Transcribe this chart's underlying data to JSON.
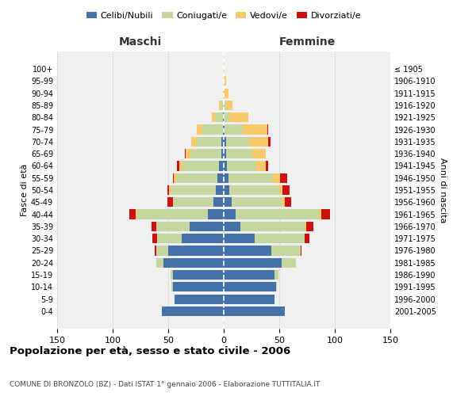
{
  "age_groups": [
    "0-4",
    "5-9",
    "10-14",
    "15-19",
    "20-24",
    "25-29",
    "30-34",
    "35-39",
    "40-44",
    "45-49",
    "50-54",
    "55-59",
    "60-64",
    "65-69",
    "70-74",
    "75-79",
    "80-84",
    "85-89",
    "90-94",
    "95-99",
    "100+"
  ],
  "birth_years": [
    "2001-2005",
    "1996-2000",
    "1991-1995",
    "1986-1990",
    "1981-1985",
    "1976-1980",
    "1971-1975",
    "1966-1970",
    "1961-1965",
    "1956-1960",
    "1951-1955",
    "1946-1950",
    "1941-1945",
    "1936-1940",
    "1931-1935",
    "1926-1930",
    "1921-1925",
    "1916-1920",
    "1911-1915",
    "1906-1910",
    "≤ 1905"
  ],
  "male": {
    "celibi": [
      56,
      44,
      46,
      46,
      54,
      50,
      38,
      31,
      14,
      9,
      7,
      6,
      4,
      2,
      2,
      1,
      1,
      0,
      0,
      0,
      0
    ],
    "coniugati": [
      0,
      0,
      1,
      2,
      7,
      11,
      22,
      30,
      64,
      36,
      41,
      37,
      33,
      28,
      22,
      18,
      7,
      3,
      1,
      0,
      0
    ],
    "vedovi": [
      0,
      0,
      0,
      0,
      0,
      0,
      0,
      0,
      1,
      1,
      1,
      2,
      3,
      4,
      5,
      5,
      3,
      1,
      0,
      0,
      0
    ],
    "divorziati": [
      0,
      0,
      0,
      0,
      0,
      1,
      4,
      4,
      6,
      5,
      2,
      1,
      2,
      1,
      0,
      0,
      0,
      0,
      0,
      0,
      0
    ]
  },
  "female": {
    "nubili": [
      55,
      46,
      47,
      46,
      52,
      43,
      28,
      15,
      11,
      7,
      5,
      4,
      3,
      2,
      2,
      1,
      0,
      0,
      0,
      0,
      0
    ],
    "coniugate": [
      0,
      0,
      1,
      3,
      13,
      26,
      45,
      58,
      75,
      45,
      44,
      40,
      26,
      24,
      21,
      16,
      5,
      2,
      0,
      0,
      0
    ],
    "vedove": [
      0,
      0,
      0,
      0,
      0,
      0,
      0,
      1,
      2,
      3,
      4,
      7,
      9,
      12,
      17,
      22,
      17,
      6,
      4,
      2,
      1
    ],
    "divorziate": [
      0,
      0,
      0,
      0,
      0,
      1,
      4,
      7,
      8,
      6,
      6,
      6,
      2,
      0,
      2,
      1,
      0,
      0,
      0,
      0,
      0
    ]
  },
  "colors": {
    "celibi_nubili": "#4472a8",
    "coniugati_e": "#c5d6a0",
    "vedovi_e": "#f9c96e",
    "divorziati_e": "#cc1111"
  },
  "xlim": 150,
  "title": "Popolazione per età, sesso e stato civile - 2006",
  "subtitle": "COMUNE DI BRONZOLO (BZ) - Dati ISTAT 1° gennaio 2006 - Elaborazione TUTTITALIA.IT",
  "ylabel_left": "Fasce di età",
  "ylabel_right": "Anni di nascita",
  "xlabel_left_header": "Maschi",
  "xlabel_right_header": "Femmine",
  "bg_color": "#ffffff",
  "plot_bg_color": "#f0f0f0",
  "grid_color": "#cccccc"
}
